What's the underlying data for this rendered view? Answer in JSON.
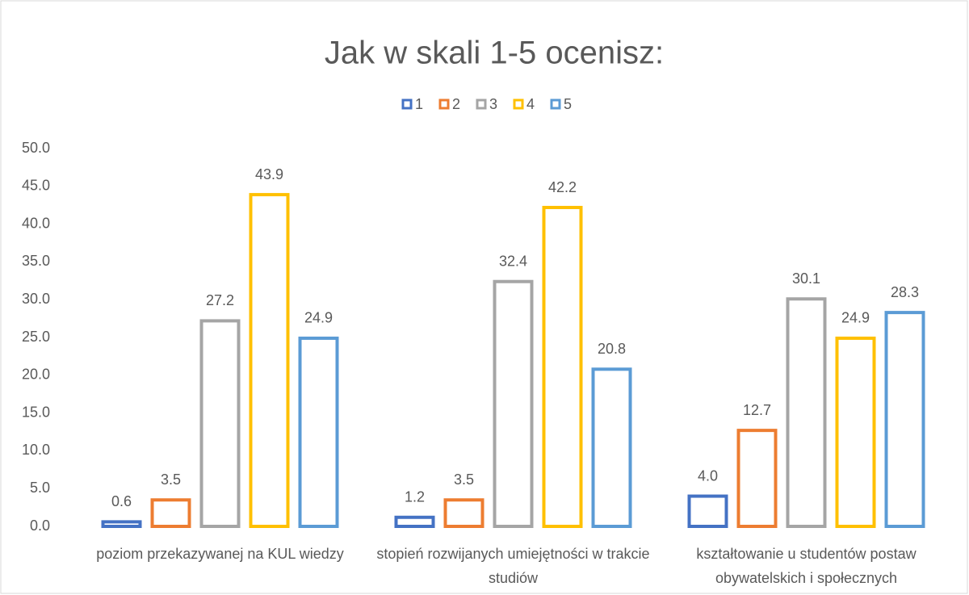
{
  "chart_data": {
    "type": "bar",
    "title": "Jak w skali 1-5 ocenisz:",
    "categories": [
      "poziom przekazywanej na KUL wiedzy",
      "stopień rozwijanych umiejętności w trakcie studiów",
      "kształtowanie u studentów postaw obywatelskich i społecznych"
    ],
    "series": [
      {
        "name": "1",
        "color": "#4472c4",
        "values": [
          0.6,
          1.2,
          4.0
        ],
        "value_labels": [
          "0.6",
          "1.2",
          "4.0"
        ]
      },
      {
        "name": "2",
        "color": "#ed7d31",
        "values": [
          3.5,
          3.5,
          12.7
        ],
        "value_labels": [
          "3.5",
          "3.5",
          "12.7"
        ]
      },
      {
        "name": "3",
        "color": "#a5a5a5",
        "values": [
          27.2,
          32.4,
          30.1
        ],
        "value_labels": [
          "27.2",
          "32.4",
          "30.1"
        ]
      },
      {
        "name": "4",
        "color": "#ffc000",
        "values": [
          43.9,
          42.2,
          24.9
        ],
        "value_labels": [
          "43.9",
          "42.2",
          "24.9"
        ]
      },
      {
        "name": "5",
        "color": "#5b9bd5",
        "values": [
          24.9,
          20.8,
          28.3
        ],
        "value_labels": [
          "24.9",
          "20.8",
          "28.3"
        ]
      }
    ],
    "ylim": [
      0,
      50
    ],
    "yticks": [
      {
        "value": 0,
        "label": "0.0"
      },
      {
        "value": 5,
        "label": "5.0"
      },
      {
        "value": 10,
        "label": "10.0"
      },
      {
        "value": 15,
        "label": "15.0"
      },
      {
        "value": 20,
        "label": "20.0"
      },
      {
        "value": 25,
        "label": "25.0"
      },
      {
        "value": 30,
        "label": "30.0"
      },
      {
        "value": 35,
        "label": "35.0"
      },
      {
        "value": 40,
        "label": "40.0"
      },
      {
        "value": 45,
        "label": "45.0"
      },
      {
        "value": 50,
        "label": "50.0"
      }
    ],
    "legend": "top"
  }
}
